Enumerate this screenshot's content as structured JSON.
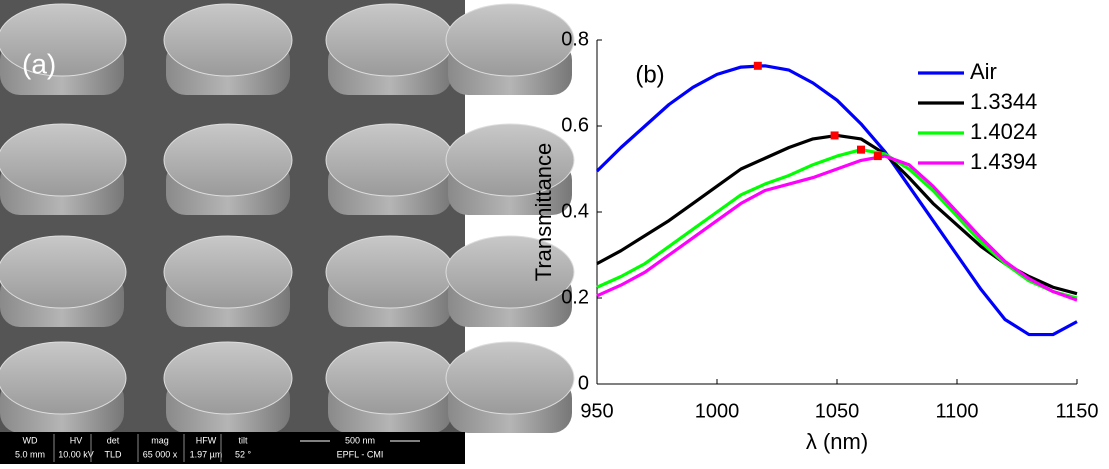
{
  "image_panel": {
    "label": "(a)",
    "info_bar": {
      "headers": [
        "WD",
        "HV",
        "det",
        "mag",
        "HFW",
        "tilt"
      ],
      "values": [
        "5.0 mm",
        "10.00 kV",
        "TLD",
        "65 000 x",
        "1.97 µm",
        "52 °"
      ],
      "scale": "500 nm",
      "lab": "EPFL - CMI"
    }
  },
  "chart_data": {
    "type": "line",
    "annotation": "(b)",
    "x_label": "λ (nm)",
    "y_label": "Transmittance",
    "x": [
      950,
      960,
      970,
      980,
      990,
      1000,
      1010,
      1020,
      1030,
      1040,
      1050,
      1060,
      1070,
      1080,
      1090,
      1100,
      1110,
      1120,
      1130,
      1140,
      1150
    ],
    "series": [
      {
        "name": "Air",
        "color": "#0000ff",
        "values": [
          0.495,
          0.55,
          0.6,
          0.65,
          0.69,
          0.72,
          0.737,
          0.74,
          0.73,
          0.7,
          0.66,
          0.605,
          0.54,
          0.46,
          0.38,
          0.3,
          0.22,
          0.15,
          0.115,
          0.115,
          0.145
        ]
      },
      {
        "name": "1.3344",
        "color": "#000000",
        "values": [
          0.28,
          0.31,
          0.345,
          0.38,
          0.42,
          0.46,
          0.5,
          0.525,
          0.55,
          0.57,
          0.578,
          0.57,
          0.535,
          0.48,
          0.42,
          0.37,
          0.32,
          0.28,
          0.25,
          0.225,
          0.21
        ]
      },
      {
        "name": "1.4024",
        "color": "#00ff00",
        "values": [
          0.225,
          0.25,
          0.28,
          0.32,
          0.36,
          0.4,
          0.44,
          0.465,
          0.485,
          0.51,
          0.53,
          0.545,
          0.535,
          0.5,
          0.45,
          0.39,
          0.33,
          0.28,
          0.24,
          0.215,
          0.2
        ]
      },
      {
        "name": "1.4394",
        "color": "#ff00ff",
        "values": [
          0.205,
          0.23,
          0.26,
          0.3,
          0.34,
          0.38,
          0.42,
          0.45,
          0.465,
          0.48,
          0.5,
          0.52,
          0.53,
          0.51,
          0.46,
          0.4,
          0.34,
          0.285,
          0.245,
          0.215,
          0.195
        ]
      }
    ],
    "markers": {
      "color": "#ff0000",
      "x": [
        1017,
        1049,
        1060,
        1067
      ],
      "y": [
        0.74,
        0.578,
        0.545,
        0.53
      ]
    },
    "xlim": [
      950,
      1150
    ],
    "ylim": [
      0,
      0.8
    ],
    "xticks": [
      950,
      1000,
      1050,
      1100,
      1150
    ],
    "yticks": [
      0,
      0.2,
      0.4,
      0.6,
      0.8
    ],
    "legend": "upper right"
  }
}
